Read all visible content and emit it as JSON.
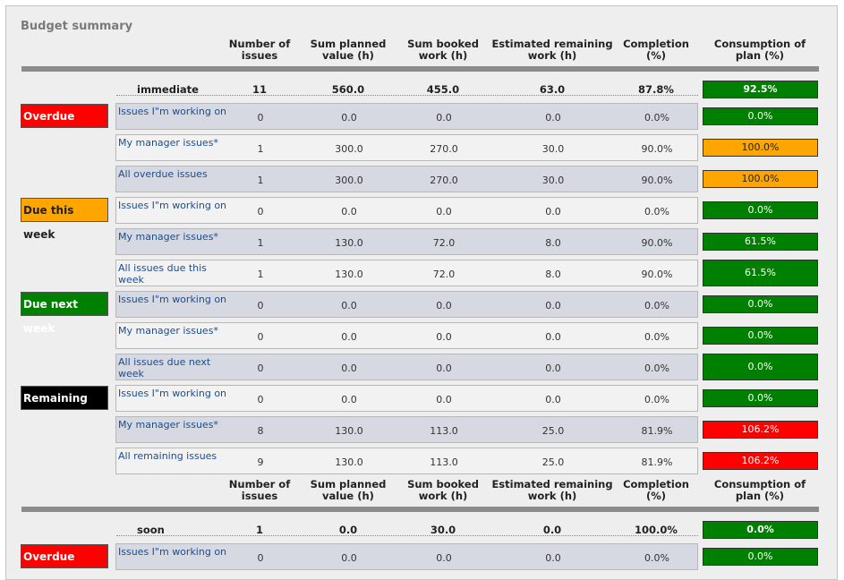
{
  "title": "Budget summary",
  "headers": [
    "Number of\nissues",
    "Sum planned\nvalue (h)",
    "Sum booked\nwork (h)",
    "Estimated remaining\nwork (h)",
    "Completion\n(%)",
    "Consumption of\nplan (%)"
  ],
  "colors": {
    "green": "#008000",
    "orange": "#ffa500",
    "red": "#ff0000",
    "black": "#000000",
    "row_shade": "#d6d8e2"
  },
  "groups": [
    {
      "name": "immediate",
      "values": [
        "11",
        "560.0",
        "455.0",
        "63.0",
        "87.8%",
        "92.5%"
      ],
      "consumption_color": "green",
      "categories": [
        {
          "label": "Overdue",
          "color": "red",
          "rows": [
            {
              "label": "Issues I\"m working on",
              "values": [
                "0",
                "0.0",
                "0.0",
                "0.0",
                "0.0%",
                "0.0%"
              ],
              "consumption_color": "green"
            },
            {
              "label": "My manager issues*",
              "values": [
                "1",
                "300.0",
                "270.0",
                "30.0",
                "90.0%",
                "100.0%"
              ],
              "consumption_color": "orange"
            },
            {
              "label": "All overdue issues",
              "values": [
                "1",
                "300.0",
                "270.0",
                "30.0",
                "90.0%",
                "100.0%"
              ],
              "consumption_color": "orange"
            }
          ]
        },
        {
          "label": "Due this week",
          "color": "orange",
          "rows": [
            {
              "label": "Issues I\"m working on",
              "values": [
                "0",
                "0.0",
                "0.0",
                "0.0",
                "0.0%",
                "0.0%"
              ],
              "consumption_color": "green"
            },
            {
              "label": "My manager issues*",
              "values": [
                "1",
                "130.0",
                "72.0",
                "8.0",
                "90.0%",
                "61.5%"
              ],
              "consumption_color": "green"
            },
            {
              "label": "All issues due this week",
              "values": [
                "1",
                "130.0",
                "72.0",
                "8.0",
                "90.0%",
                "61.5%"
              ],
              "consumption_color": "green"
            }
          ]
        },
        {
          "label": "Due next week",
          "color": "green",
          "rows": [
            {
              "label": "Issues I\"m working on",
              "values": [
                "0",
                "0.0",
                "0.0",
                "0.0",
                "0.0%",
                "0.0%"
              ],
              "consumption_color": "green"
            },
            {
              "label": "My manager issues*",
              "values": [
                "0",
                "0.0",
                "0.0",
                "0.0",
                "0.0%",
                "0.0%"
              ],
              "consumption_color": "green"
            },
            {
              "label": "All issues due next week",
              "values": [
                "0",
                "0.0",
                "0.0",
                "0.0",
                "0.0%",
                "0.0%"
              ],
              "consumption_color": "green"
            }
          ]
        },
        {
          "label": "Remaining",
          "color": "black",
          "rows": [
            {
              "label": "Issues I\"m working on",
              "values": [
                "0",
                "0.0",
                "0.0",
                "0.0",
                "0.0%",
                "0.0%"
              ],
              "consumption_color": "green"
            },
            {
              "label": "My manager issues*",
              "values": [
                "8",
                "130.0",
                "113.0",
                "25.0",
                "81.9%",
                "106.2%"
              ],
              "consumption_color": "red"
            },
            {
              "label": "All remaining issues",
              "values": [
                "9",
                "130.0",
                "113.0",
                "25.0",
                "81.9%",
                "106.2%"
              ],
              "consumption_color": "red"
            }
          ]
        }
      ]
    },
    {
      "name": "soon",
      "values": [
        "1",
        "0.0",
        "30.0",
        "0.0",
        "100.0%",
        "0.0%"
      ],
      "consumption_color": "green",
      "categories": [
        {
          "label": "Overdue",
          "color": "red",
          "rows": [
            {
              "label": "Issues I\"m working on",
              "values": [
                "0",
                "0.0",
                "0.0",
                "0.0",
                "0.0%",
                "0.0%"
              ],
              "consumption_color": "green"
            }
          ]
        }
      ]
    }
  ]
}
